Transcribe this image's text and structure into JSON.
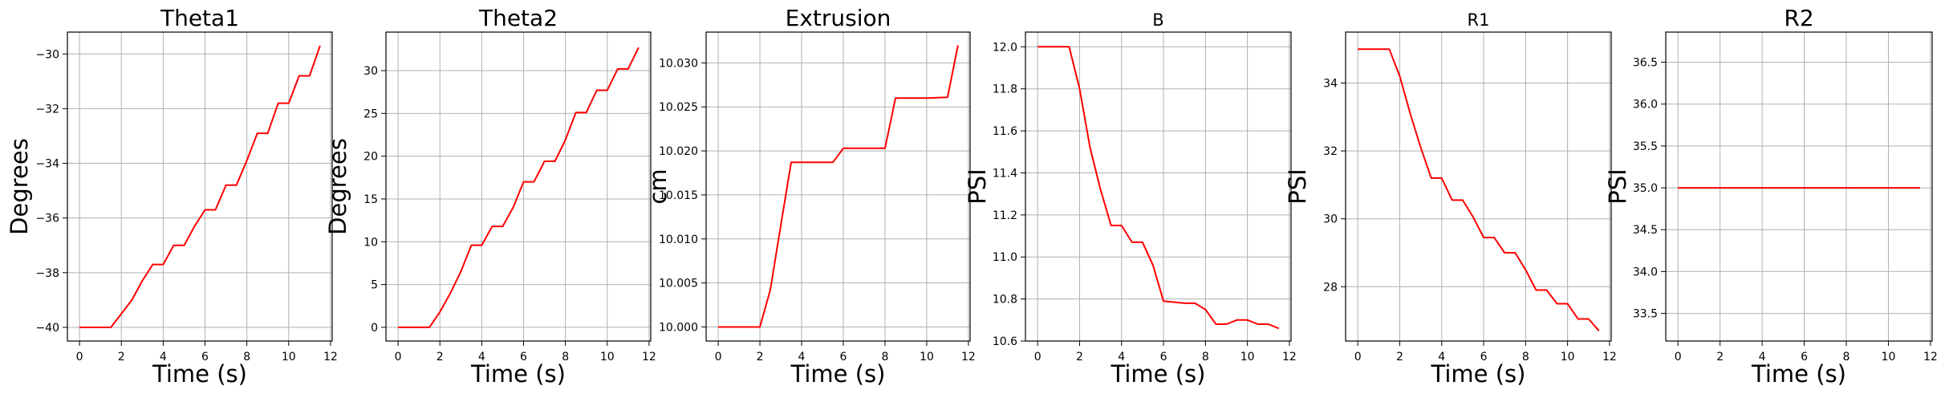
{
  "chart_data": [
    {
      "type": "line",
      "title": "Theta1",
      "xlabel": "Time (s)",
      "ylabel": "Degrees",
      "xlim": [
        -0.58,
        12.08
      ],
      "ylim": [
        -40.5,
        -29.2
      ],
      "xticks": [
        0,
        2,
        4,
        6,
        8,
        10,
        12
      ],
      "yticks": [
        -40,
        -38,
        -36,
        -34,
        -32,
        -30
      ],
      "ytick_labels": [
        "−40",
        "−38",
        "−36",
        "−34",
        "−32",
        "−30"
      ],
      "grid": true,
      "color": "#ff0000",
      "series": [
        {
          "x": [
            0,
            1.5,
            2,
            2.5,
            3,
            3.5,
            4,
            4.5,
            5,
            5.5,
            6,
            6.5,
            7,
            7.5,
            8,
            8.5,
            9,
            9.5,
            10,
            10.5,
            11,
            11.5
          ],
          "y": [
            -40,
            -40,
            -39.5,
            -39,
            -38.3,
            -37.7,
            -37.7,
            -37.0,
            -37.0,
            -36.3,
            -35.7,
            -35.7,
            -34.8,
            -34.8,
            -33.9,
            -32.9,
            -32.9,
            -31.8,
            -31.8,
            -30.8,
            -30.8,
            -29.7
          ]
        }
      ]
    },
    {
      "type": "line",
      "title": "Theta2",
      "xlabel": "Time (s)",
      "ylabel": "Degrees",
      "xlim": [
        -0.58,
        12.08
      ],
      "ylim": [
        -1.6,
        34.5
      ],
      "xticks": [
        0,
        2,
        4,
        6,
        8,
        10,
        12
      ],
      "yticks": [
        0,
        5,
        10,
        15,
        20,
        25,
        30
      ],
      "ytick_labels": [
        "0",
        "5",
        "10",
        "15",
        "20",
        "25",
        "30"
      ],
      "grid": true,
      "color": "#ff0000",
      "series": [
        {
          "x": [
            0,
            1.5,
            2,
            2.5,
            3,
            3.5,
            4,
            4.5,
            5,
            5.5,
            6,
            6.5,
            7,
            7.5,
            8,
            8.5,
            9,
            9.5,
            10,
            10.5,
            11,
            11.5
          ],
          "y": [
            0,
            0,
            1.8,
            4.0,
            6.5,
            9.6,
            9.6,
            11.8,
            11.8,
            14.0,
            17.0,
            17.0,
            19.4,
            19.4,
            21.9,
            25.1,
            25.1,
            27.7,
            27.7,
            30.2,
            30.2,
            32.7
          ]
        }
      ]
    },
    {
      "type": "line",
      "title": "Extrusion",
      "xlabel": "Time (s)",
      "ylabel": "cm",
      "xlim": [
        -0.58,
        12.08
      ],
      "ylim": [
        9.9984,
        10.0335
      ],
      "xticks": [
        0,
        2,
        4,
        6,
        8,
        10,
        12
      ],
      "yticks": [
        10.0,
        10.005,
        10.01,
        10.015,
        10.02,
        10.025,
        10.03
      ],
      "ytick_labels": [
        "10.000",
        "10.005",
        "10.010",
        "10.015",
        "10.020",
        "10.025",
        "10.030"
      ],
      "grid": true,
      "color": "#ff0000",
      "series": [
        {
          "x": [
            0,
            2,
            2.5,
            3,
            3.5,
            4,
            5.5,
            6,
            8,
            8.5,
            10,
            11,
            11.5
          ],
          "y": [
            10.0,
            10.0,
            10.0042,
            10.0115,
            10.0187,
            10.0187,
            10.0187,
            10.0203,
            10.0203,
            10.026,
            10.026,
            10.0261,
            10.032
          ]
        }
      ]
    },
    {
      "type": "line",
      "title": "B",
      "xlabel": "Time (s)",
      "ylabel": "PSI",
      "xlim": [
        -0.58,
        12.08
      ],
      "ylim": [
        10.6,
        12.07
      ],
      "xticks": [
        0,
        2,
        4,
        6,
        8,
        10,
        12
      ],
      "yticks": [
        10.6,
        10.8,
        11.0,
        11.2,
        11.4,
        11.6,
        11.8,
        12.0
      ],
      "ytick_labels": [
        "10.6",
        "10.8",
        "11.0",
        "11.2",
        "11.4",
        "11.6",
        "11.8",
        "12.0"
      ],
      "grid": true,
      "color": "#ff0000",
      "series": [
        {
          "x": [
            0,
            1.5,
            2,
            2.5,
            3,
            3.5,
            4,
            4.5,
            5,
            5.5,
            6,
            7,
            7.5,
            8,
            8.5,
            9,
            9.5,
            10,
            10.5,
            11,
            11.5
          ],
          "y": [
            12.0,
            12.0,
            11.8,
            11.52,
            11.32,
            11.15,
            11.15,
            11.07,
            11.07,
            10.96,
            10.79,
            10.78,
            10.78,
            10.75,
            10.68,
            10.68,
            10.7,
            10.7,
            10.68,
            10.68,
            10.66
          ]
        }
      ]
    },
    {
      "type": "line",
      "title": "R1",
      "xlabel": "Time (s)",
      "ylabel": "PSI",
      "xlim": [
        -0.58,
        12.08
      ],
      "ylim": [
        26.4,
        35.5
      ],
      "xticks": [
        0,
        2,
        4,
        6,
        8,
        10,
        12
      ],
      "yticks": [
        28,
        30,
        32,
        34
      ],
      "ytick_labels": [
        "28",
        "30",
        "32",
        "34"
      ],
      "grid": true,
      "color": "#ff0000",
      "series": [
        {
          "x": [
            0,
            1.5,
            2,
            2.5,
            3,
            3.5,
            4,
            4.5,
            5,
            5.5,
            6,
            6.5,
            7,
            7.5,
            8,
            8.5,
            9,
            9.5,
            10,
            10.5,
            11,
            11.5
          ],
          "y": [
            35.0,
            35.0,
            34.2,
            33.1,
            32.1,
            31.2,
            31.2,
            30.55,
            30.55,
            30.05,
            29.45,
            29.45,
            29.0,
            29.0,
            28.5,
            27.9,
            27.9,
            27.5,
            27.5,
            27.05,
            27.05,
            26.7
          ]
        }
      ]
    },
    {
      "type": "line",
      "title": "R2",
      "xlabel": "Time (s)",
      "ylabel": "PSI",
      "xlim": [
        -0.58,
        12.08
      ],
      "ylim": [
        33.17,
        36.86
      ],
      "xticks": [
        0,
        2,
        4,
        6,
        8,
        10,
        12
      ],
      "yticks": [
        33.5,
        34.0,
        34.5,
        35.0,
        35.5,
        36.0,
        36.5
      ],
      "ytick_labels": [
        "33.5",
        "34.0",
        "34.5",
        "35.0",
        "35.5",
        "36.0",
        "36.5"
      ],
      "grid": true,
      "color": "#ff0000",
      "series": [
        {
          "x": [
            0,
            11.5
          ],
          "y": [
            35.0,
            35.0
          ]
        }
      ]
    }
  ]
}
